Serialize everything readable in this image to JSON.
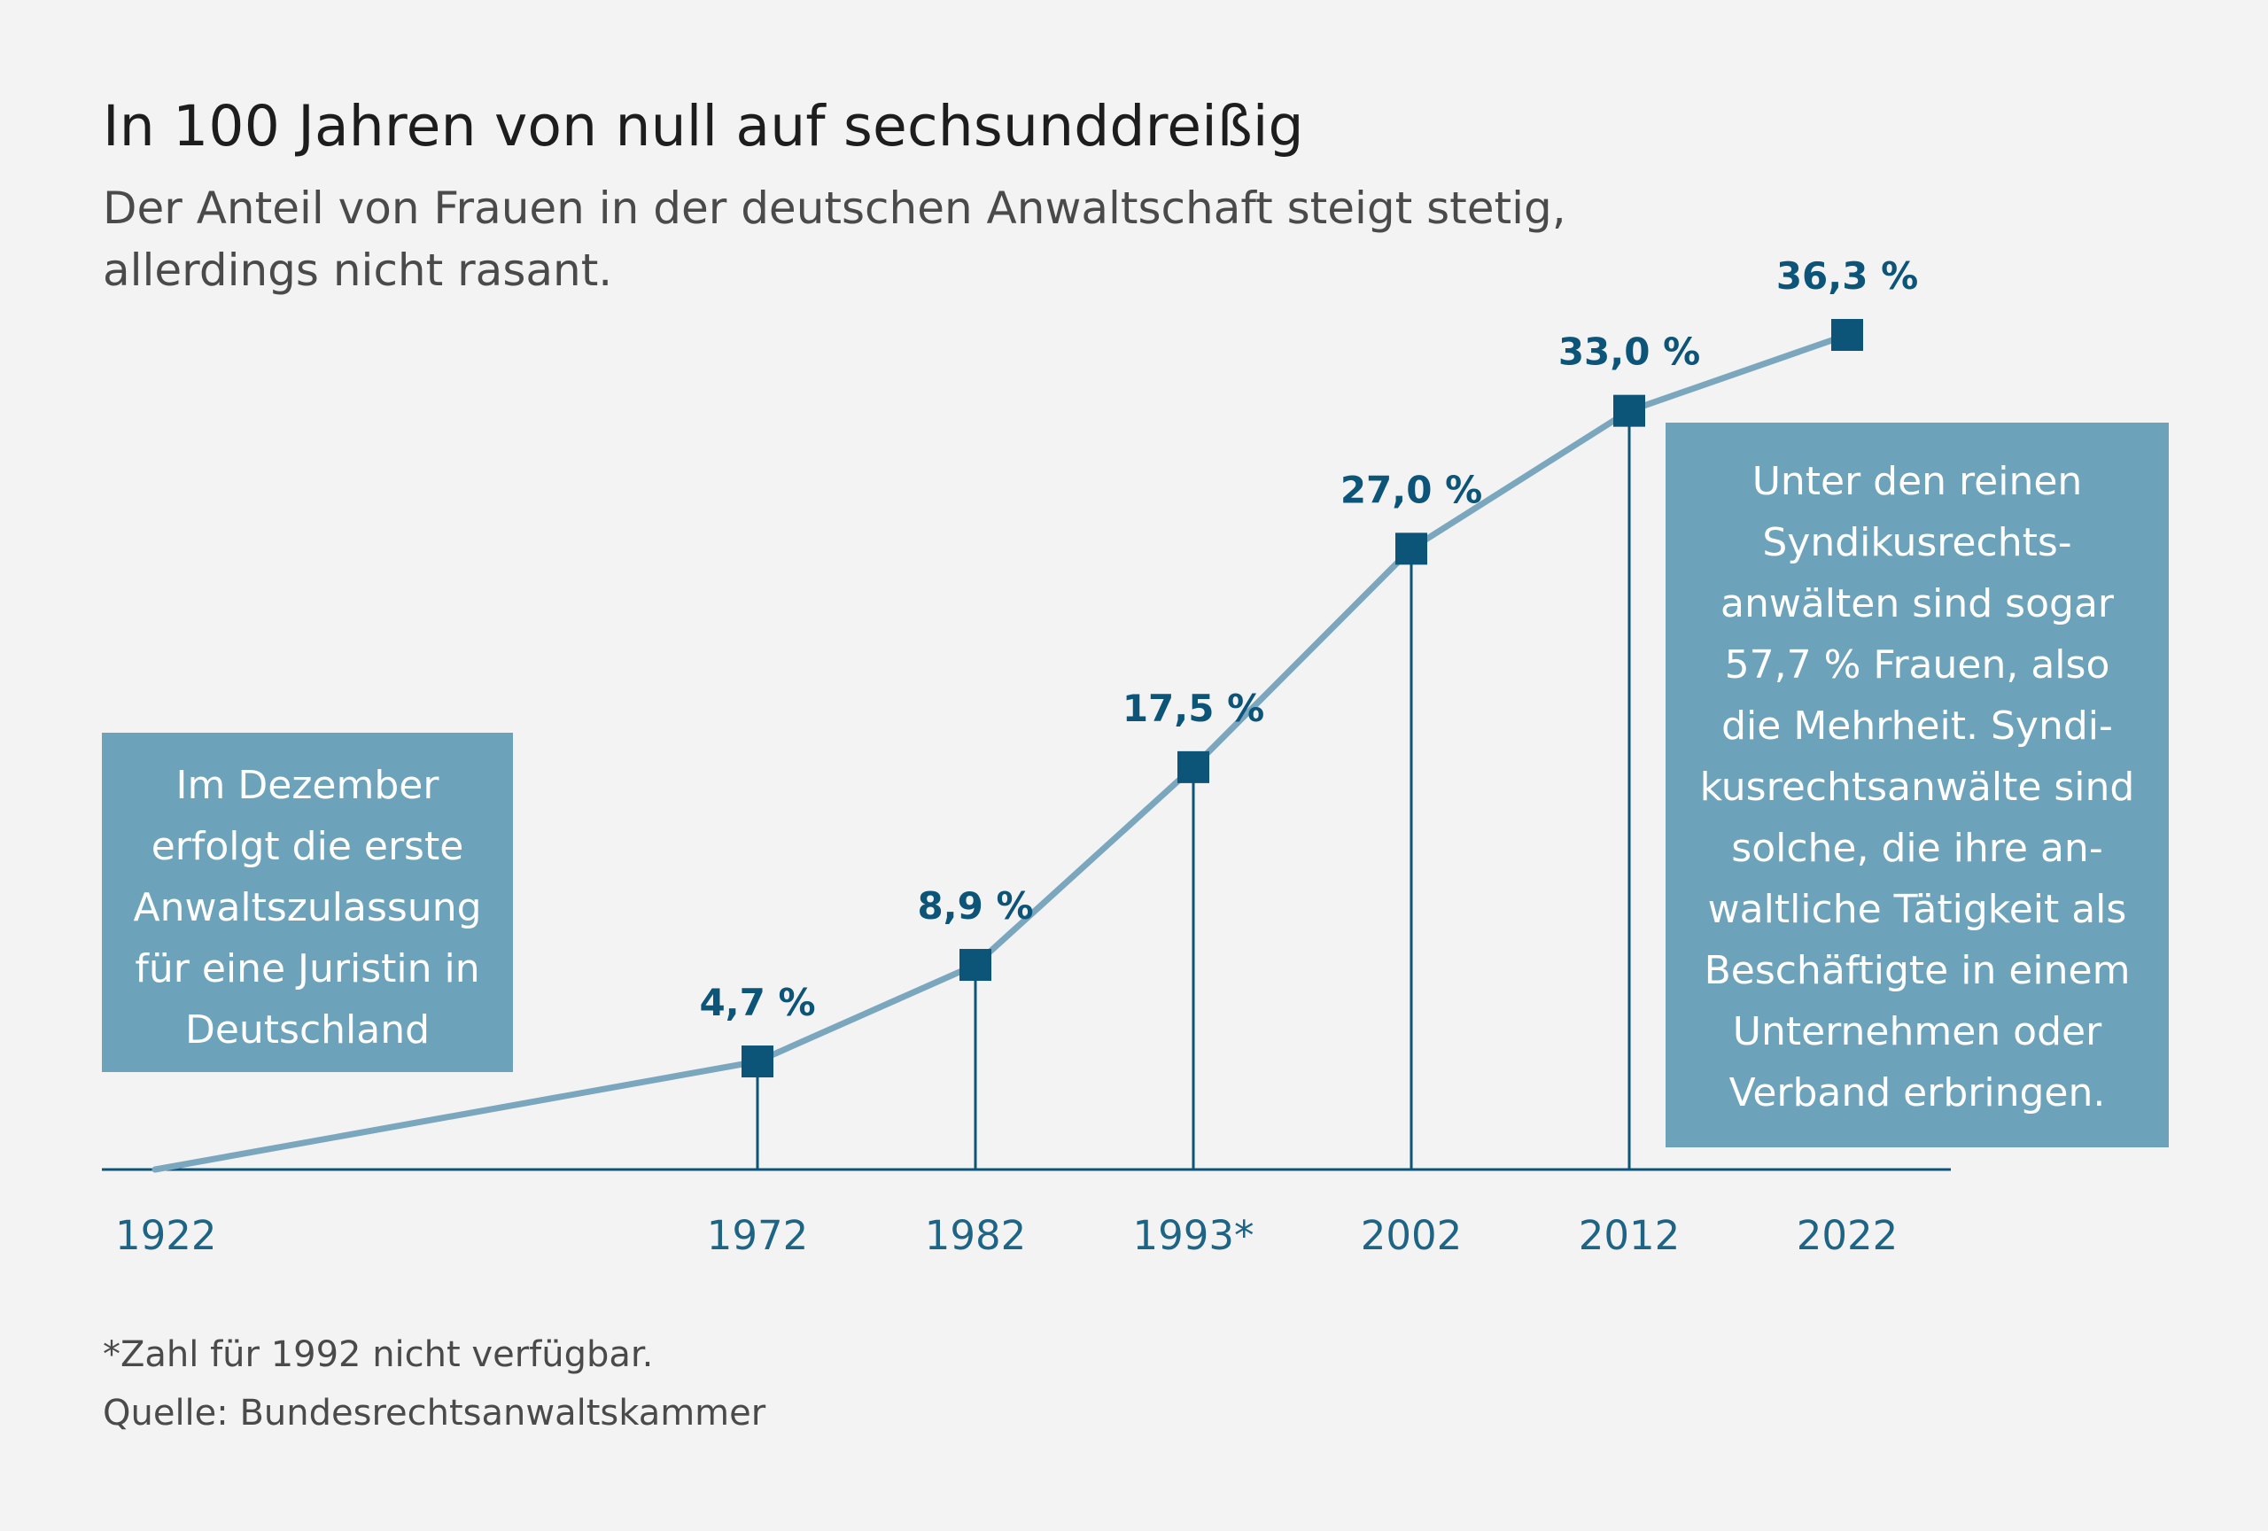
{
  "header": {
    "title": "In 100 Jahren von null auf sechsunddreißig",
    "subtitle": "Der Anteil von Frauen in der deutschen Anwaltschaft steigt stetig, allerdings nicht rasant."
  },
  "notes": {
    "left": [
      "Im Dezember",
      "erfolgt die erste",
      "Anwaltszulassung",
      "für eine Juristin in",
      "Deutschland"
    ],
    "right": [
      "Unter den reinen",
      "Syndikusrechts-",
      "anwälten sind sogar",
      "57,7 % Frauen, also",
      "die Mehrheit. Syndi-",
      "kusrechtsanwälte sind",
      "solche, die ihre an-",
      "waltliche Tätigkeit als",
      "Beschäftigte in einem",
      "Unternehmen oder",
      "Verband erbringen."
    ]
  },
  "footer": {
    "footnote": "*Zahl für 1992 nicht verfügbar.",
    "source": "Quelle: Bundesrechtsanwaltskammer"
  },
  "colors": {
    "line": "#7aa6be",
    "marker": "#0c5478",
    "label": "#0c5478",
    "axis_text": "#1e6485",
    "note_bg": "#6da2bb"
  },
  "chart_data": {
    "type": "line",
    "categories": [
      "1922",
      "1972",
      "1982",
      "1993*",
      "2002",
      "2012",
      "2022"
    ],
    "x": [
      1922,
      1972,
      1982,
      1993,
      2002,
      2012,
      2022
    ],
    "values": [
      0,
      4.7,
      8.9,
      17.5,
      27.0,
      33.0,
      36.3
    ],
    "value_labels": [
      "",
      "4,7 %",
      "8,9 %",
      "17,5 %",
      "27,0 %",
      "33,0 %",
      "36,3 %"
    ],
    "markers": [
      false,
      true,
      true,
      true,
      true,
      true,
      true
    ],
    "drop_lines": [
      false,
      true,
      true,
      true,
      true,
      true,
      false
    ],
    "ylim": [
      0,
      40
    ],
    "grid": false
  }
}
